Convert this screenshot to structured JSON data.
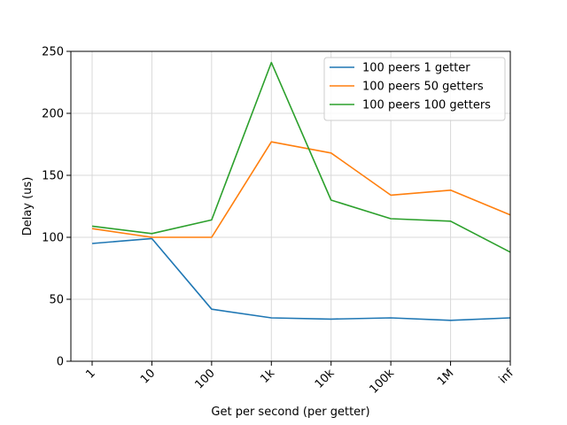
{
  "chart_data": {
    "type": "line",
    "title": "",
    "xlabel": "Get per second (per getter)",
    "ylabel": "Delay (us)",
    "categories": [
      "1",
      "10",
      "100",
      "1k",
      "10k",
      "100k",
      "1M",
      "inf"
    ],
    "ylim": [
      0,
      250
    ],
    "yticks": [
      0,
      50,
      100,
      150,
      200,
      250
    ],
    "grid": true,
    "legend_position": "top-right",
    "series": [
      {
        "name": "100 peers 1 getter",
        "color": "#1f77b4",
        "values": [
          95,
          99,
          42,
          35,
          34,
          35,
          33,
          35
        ]
      },
      {
        "name": "100 peers 50 getters",
        "color": "#ff7f0e",
        "values": [
          107,
          100,
          100,
          177,
          168,
          134,
          138,
          118
        ]
      },
      {
        "name": "100 peers 100 getters",
        "color": "#2ca02c",
        "values": [
          109,
          103,
          114,
          241,
          130,
          115,
          113,
          88
        ]
      }
    ]
  }
}
